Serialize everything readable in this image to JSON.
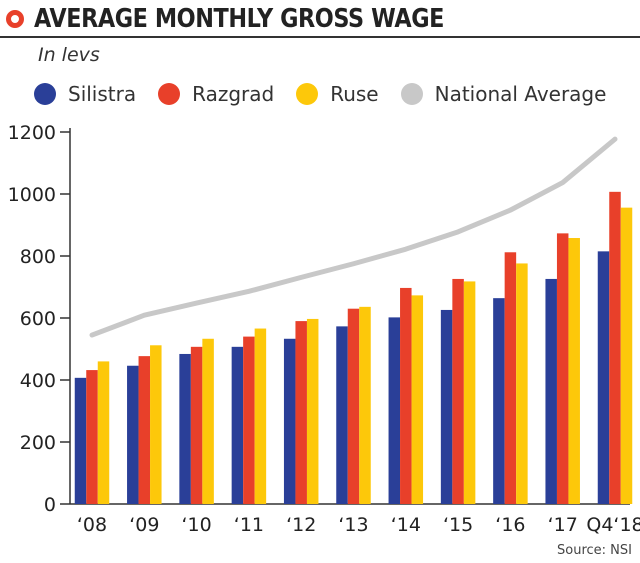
{
  "header": {
    "title": "AVERAGE MONTHLY GROSS WAGE",
    "subtitle": "In levs"
  },
  "source": "Source: NSI",
  "colors": {
    "silistra": "#2a3f98",
    "razgrad": "#e8402a",
    "ruse": "#fdc80a",
    "national": "#c8c8c8",
    "title_icon": "#e8402a"
  },
  "chart_data": {
    "type": "bar",
    "categories": [
      "‘08",
      "‘09",
      "‘10",
      "‘11",
      "‘12",
      "‘13",
      "‘14",
      "‘15",
      "‘16",
      "‘17",
      "Q4‘18"
    ],
    "series": [
      {
        "name": "Silistra",
        "values": [
          407,
          446,
          484,
          507,
          533,
          573,
          602,
          626,
          664,
          726,
          815
        ]
      },
      {
        "name": "Razgrad",
        "values": [
          432,
          477,
          507,
          540,
          590,
          630,
          697,
          726,
          812,
          873,
          1007
        ]
      },
      {
        "name": "Ruse",
        "values": [
          460,
          512,
          533,
          566,
          597,
          636,
          673,
          718,
          776,
          858,
          956
        ]
      }
    ],
    "line_series": {
      "name": "National Average",
      "values": [
        545,
        609,
        648,
        686,
        731,
        775,
        822,
        878,
        948,
        1037,
        1177
      ]
    },
    "yticks": [
      0,
      200,
      400,
      600,
      800,
      1000,
      1200
    ],
    "ylim": [
      0,
      1200
    ],
    "grid": false,
    "legend_position": "top"
  }
}
